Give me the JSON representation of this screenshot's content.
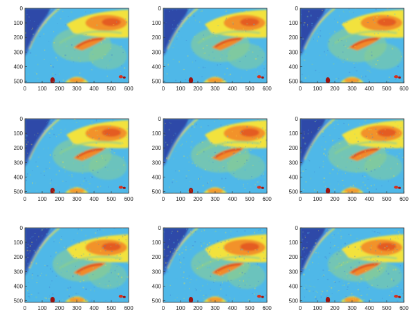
{
  "chart_data": [
    {
      "type": "heatmap",
      "variant": 0,
      "xlim": [
        0,
        600
      ],
      "ylim": [
        0,
        512
      ],
      "xticks": [
        0,
        100,
        200,
        300,
        400,
        500,
        600
      ],
      "yticks": [
        0,
        100,
        200,
        300,
        400,
        500
      ],
      "y_inverted": true,
      "colormap": "jet",
      "grid": false,
      "legend": "none"
    },
    {
      "type": "heatmap",
      "variant": 1,
      "xlim": [
        0,
        600
      ],
      "ylim": [
        0,
        512
      ],
      "xticks": [
        0,
        100,
        200,
        300,
        400,
        500,
        600
      ],
      "yticks": [
        0,
        100,
        200,
        300,
        400,
        500
      ],
      "y_inverted": true,
      "colormap": "jet",
      "grid": false,
      "legend": "none"
    },
    {
      "type": "heatmap",
      "variant": 2,
      "xlim": [
        0,
        600
      ],
      "ylim": [
        0,
        512
      ],
      "xticks": [
        0,
        100,
        200,
        300,
        400,
        500,
        600
      ],
      "yticks": [
        0,
        100,
        200,
        300,
        400,
        500
      ],
      "y_inverted": true,
      "colormap": "jet",
      "grid": false,
      "legend": "none"
    },
    {
      "type": "heatmap",
      "variant": 3,
      "xlim": [
        0,
        600
      ],
      "ylim": [
        0,
        512
      ],
      "xticks": [
        0,
        100,
        200,
        300,
        400,
        500,
        600
      ],
      "yticks": [
        0,
        100,
        200,
        300,
        400,
        500
      ],
      "y_inverted": true,
      "colormap": "jet",
      "grid": false,
      "legend": "none"
    },
    {
      "type": "heatmap",
      "variant": 4,
      "xlim": [
        0,
        600
      ],
      "ylim": [
        0,
        512
      ],
      "xticks": [
        0,
        100,
        200,
        300,
        400,
        500,
        600
      ],
      "yticks": [
        0,
        100,
        200,
        300,
        400,
        500
      ],
      "y_inverted": true,
      "colormap": "jet",
      "grid": false,
      "legend": "none"
    },
    {
      "type": "heatmap",
      "variant": 5,
      "xlim": [
        0,
        600
      ],
      "ylim": [
        0,
        512
      ],
      "xticks": [
        0,
        100,
        200,
        300,
        400,
        500,
        600
      ],
      "yticks": [
        0,
        100,
        200,
        300,
        400,
        500
      ],
      "y_inverted": true,
      "colormap": "jet",
      "grid": false,
      "legend": "none"
    },
    {
      "type": "heatmap",
      "variant": 6,
      "xlim": [
        0,
        600
      ],
      "ylim": [
        0,
        512
      ],
      "xticks": [
        0,
        100,
        200,
        300,
        400,
        500,
        600
      ],
      "yticks": [
        0,
        100,
        200,
        300,
        400,
        500
      ],
      "y_inverted": true,
      "colormap": "jet",
      "grid": false,
      "legend": "none"
    },
    {
      "type": "heatmap",
      "variant": 7,
      "xlim": [
        0,
        600
      ],
      "ylim": [
        0,
        512
      ],
      "xticks": [
        0,
        100,
        200,
        300,
        400,
        500,
        600
      ],
      "yticks": [
        0,
        100,
        200,
        300,
        400,
        500
      ],
      "y_inverted": true,
      "colormap": "jet",
      "grid": false,
      "legend": "none"
    },
    {
      "type": "heatmap",
      "variant": 8,
      "xlim": [
        0,
        600
      ],
      "ylim": [
        0,
        512
      ],
      "xticks": [
        0,
        100,
        200,
        300,
        400,
        500,
        600
      ],
      "yticks": [
        0,
        100,
        200,
        300,
        400,
        500
      ],
      "y_inverted": true,
      "colormap": "jet",
      "grid": false,
      "legend": "none"
    }
  ],
  "colors": {
    "deep_blue": "#2f4aa8",
    "blue": "#3f7fd4",
    "cyan": "#4fb8e8",
    "green": "#8fd08a",
    "yellow": "#f2e23c",
    "orange": "#f28a2a",
    "red": "#d8301c",
    "dark_red": "#9c1410"
  }
}
